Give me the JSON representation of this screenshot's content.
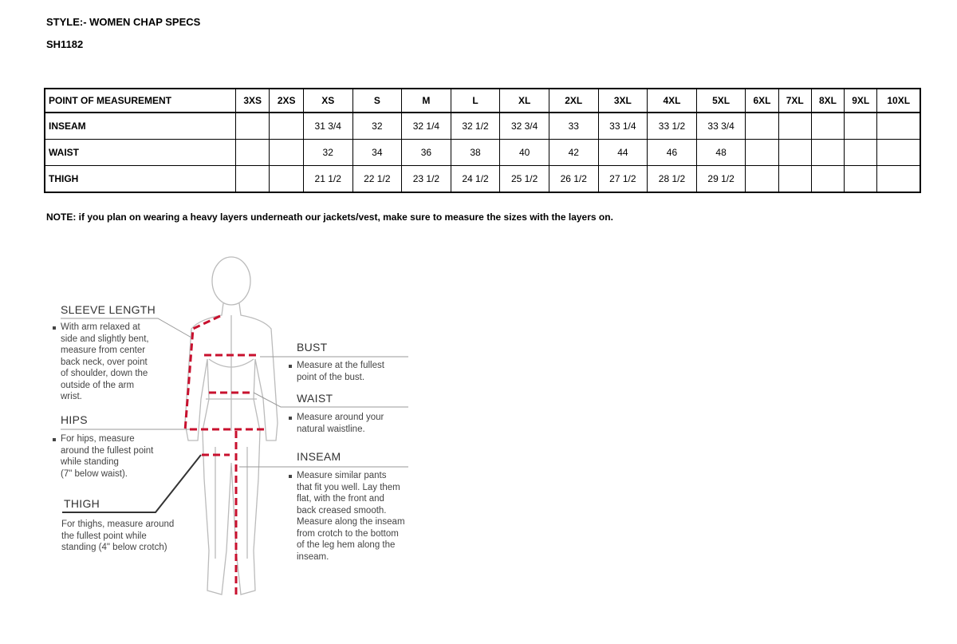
{
  "header": {
    "style": "STYLE:- WOMEN CHAP SPECS",
    "code": "SH1182"
  },
  "table": {
    "columns": [
      "POINT OF MEASUREMENT",
      "3XS",
      "2XS",
      "XS",
      "S",
      "M",
      "L",
      "XL",
      "2XL",
      "3XL",
      "4XL",
      "5XL",
      "6XL",
      "7XL",
      "8XL",
      "9XL",
      "10XL"
    ],
    "rows": [
      [
        "INSEAM",
        "",
        "",
        "31 3/4",
        "32",
        "32 1/4",
        "32 1/2",
        "32 3/4",
        "33",
        "33 1/4",
        "33 1/2",
        "33 3/4",
        "",
        "",
        "",
        "",
        ""
      ],
      [
        "WAIST",
        "",
        "",
        "32",
        "34",
        "36",
        "38",
        "40",
        "42",
        "44",
        "46",
        "48",
        "",
        "",
        "",
        "",
        ""
      ],
      [
        "THIGH",
        "",
        "",
        "21 1/2",
        "22 1/2",
        "23 1/2",
        "24 1/2",
        "25 1/2",
        "26 1/2",
        "27 1/2",
        "28 1/2",
        "29 1/2",
        "",
        "",
        "",
        "",
        ""
      ]
    ]
  },
  "note": "NOTE: if you plan on wearing a heavy layers underneath our jackets/vest, make sure to measure the sizes with the layers on.",
  "guide": {
    "sleeve": {
      "title": "SLEEVE LENGTH",
      "text": "With arm relaxed at\nside and slightly bent,\nmeasure from center\nback neck, over point\nof shoulder, down the\noutside of the arm\nwrist."
    },
    "hips": {
      "title": "HIPS",
      "text": "For hips, measure\naround the fullest point\nwhile standing\n(7\" below waist)."
    },
    "thigh": {
      "title": "THIGH",
      "text": "For thighs, measure around\nthe fullest point while\nstanding (4\" below crotch)"
    },
    "bust": {
      "title": "BUST",
      "text": "Measure at the fullest\npoint of the bust."
    },
    "waist": {
      "title": "WAIST",
      "text": "Measure around your\nnatural waistline."
    },
    "inseam": {
      "title": "INSEAM",
      "text": "Measure similar pants\nthat fit you well. Lay them\nflat, with the front and\nback creased smooth.\nMeasure along the inseam\nfrom crotch to the bottom\nof the leg hem along the\ninseam."
    },
    "measure_color": "#c8102e"
  }
}
